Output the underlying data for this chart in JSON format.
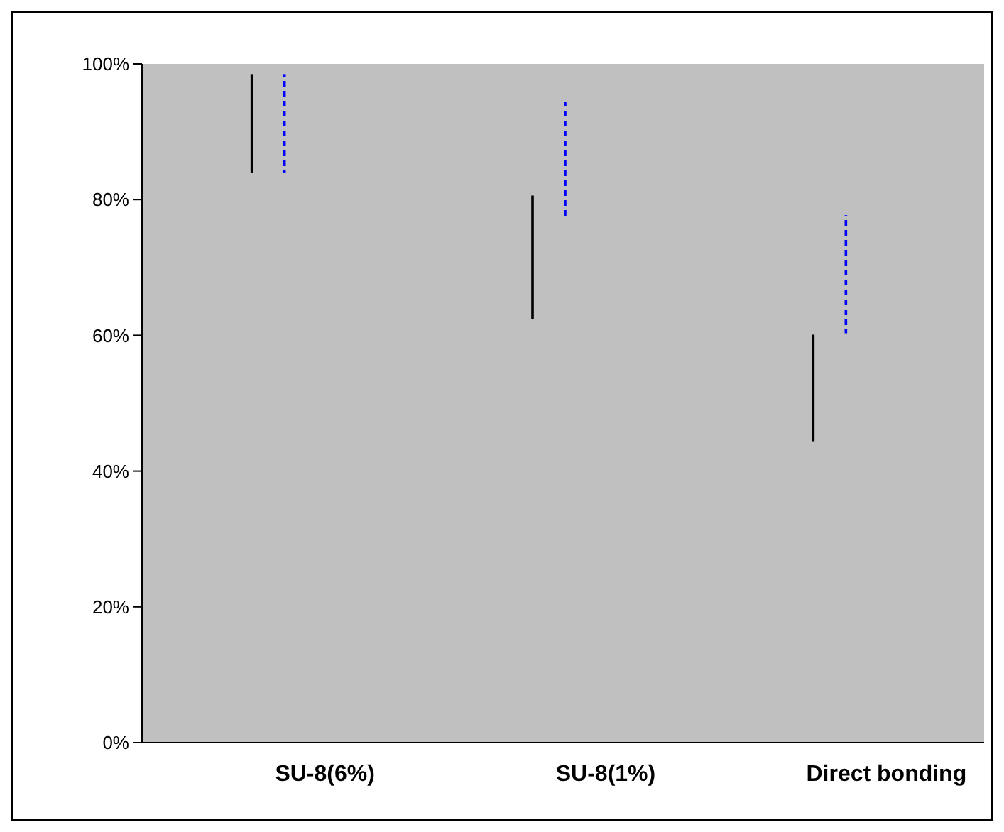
{
  "chart_data": {
    "type": "bar",
    "categories": [
      "SU-8(6%)",
      "SU-8(1%)",
      "Direct bonding"
    ],
    "series": [
      {
        "color": "#000000",
        "line_style": "solid",
        "base": [
          84,
          62.4,
          44.4
        ],
        "values": [
          14.5,
          18.2,
          15.7
        ]
      },
      {
        "color": "#0000ff",
        "line_style": "dashed",
        "base": [
          84,
          77,
          60.3
        ],
        "values": [
          14.5,
          17.4,
          17.4
        ]
      }
    ],
    "ylim": [
      0,
      100
    ],
    "yticks": [
      {
        "value": 0,
        "label": "0%"
      },
      {
        "value": 20,
        "label": "20%"
      },
      {
        "value": 40,
        "label": "40%"
      },
      {
        "value": 60,
        "label": "60%"
      },
      {
        "value": 80,
        "label": "80%"
      },
      {
        "value": 100,
        "label": "100%"
      }
    ],
    "grid": false
  }
}
